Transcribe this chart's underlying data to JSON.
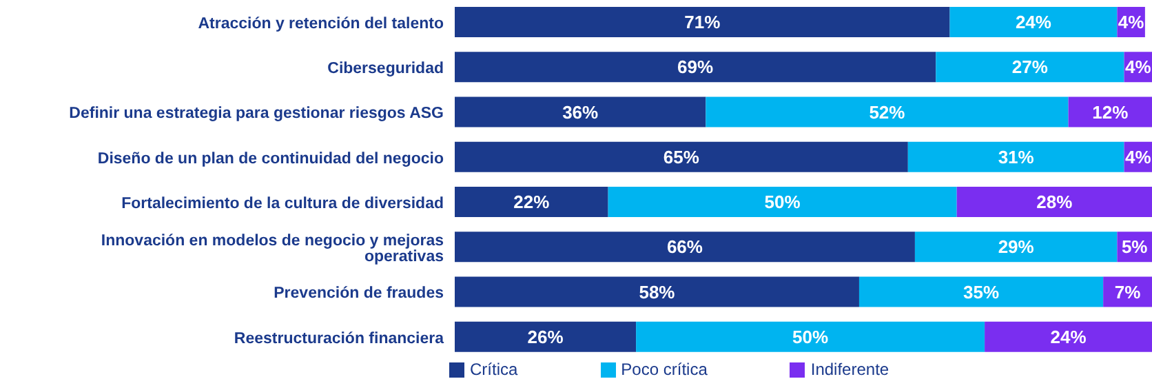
{
  "chart_data": {
    "type": "bar",
    "orientation": "horizontal",
    "stacked": true,
    "legend": "bottom left",
    "categories": [
      "Atracción y retención del talento",
      "Ciberseguridad",
      "Definir una estrategia para gestionar riesgos ASG",
      "Diseño de un plan de continuidad del negocio",
      "Fortalecimiento de la cultura de diversidad",
      "Innovación en modelos de negocio y mejoras operativas",
      "Prevención de fraudes",
      "Reestructuración financiera"
    ],
    "series": [
      {
        "name": "Crítica",
        "color": "#1b3a8c",
        "values": [
          71,
          69,
          36,
          65,
          22,
          66,
          58,
          26
        ],
        "value_labels": [
          "71%",
          "69%",
          "36%",
          "65%",
          "22%",
          "66%",
          "58%",
          "26%"
        ]
      },
      {
        "name": "Poco crítica",
        "color": "#00b4f0",
        "values": [
          24,
          27,
          52,
          31,
          50,
          29,
          35,
          50
        ],
        "value_labels": [
          "24%",
          "27%",
          "52%",
          "31%",
          "50%",
          "29%",
          "35%",
          "50%"
        ]
      },
      {
        "name": "Indiferente",
        "color": "#7a2ef0",
        "values": [
          4,
          4,
          12,
          4,
          28,
          5,
          7,
          24
        ],
        "value_labels": [
          "4%",
          "4%",
          "12%",
          "4%",
          "28%",
          "5%",
          "7%",
          "24%"
        ]
      }
    ]
  }
}
